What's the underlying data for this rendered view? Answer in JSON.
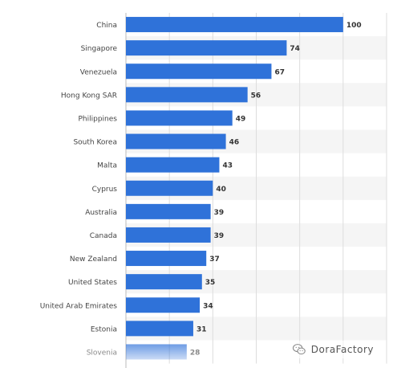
{
  "chart_data": {
    "type": "bar",
    "orientation": "horizontal",
    "categories": [
      "China",
      "Singapore",
      "Venezuela",
      "Hong Kong SAR",
      "Philippines",
      "South Korea",
      "Malta",
      "Cyprus",
      "Australia",
      "Canada",
      "New Zealand",
      "United States",
      "United Arab Emirates",
      "Estonia",
      "Slovenia"
    ],
    "values": [
      100,
      74,
      67,
      56,
      49,
      46,
      43,
      40,
      39,
      39,
      37,
      35,
      34,
      31,
      28
    ],
    "xlim": [
      0,
      120
    ],
    "grid": true,
    "bar_color": "#2f72d9",
    "faded_last": true
  },
  "watermark": {
    "text": "DoraFactory",
    "icon": "wechat-icon"
  }
}
